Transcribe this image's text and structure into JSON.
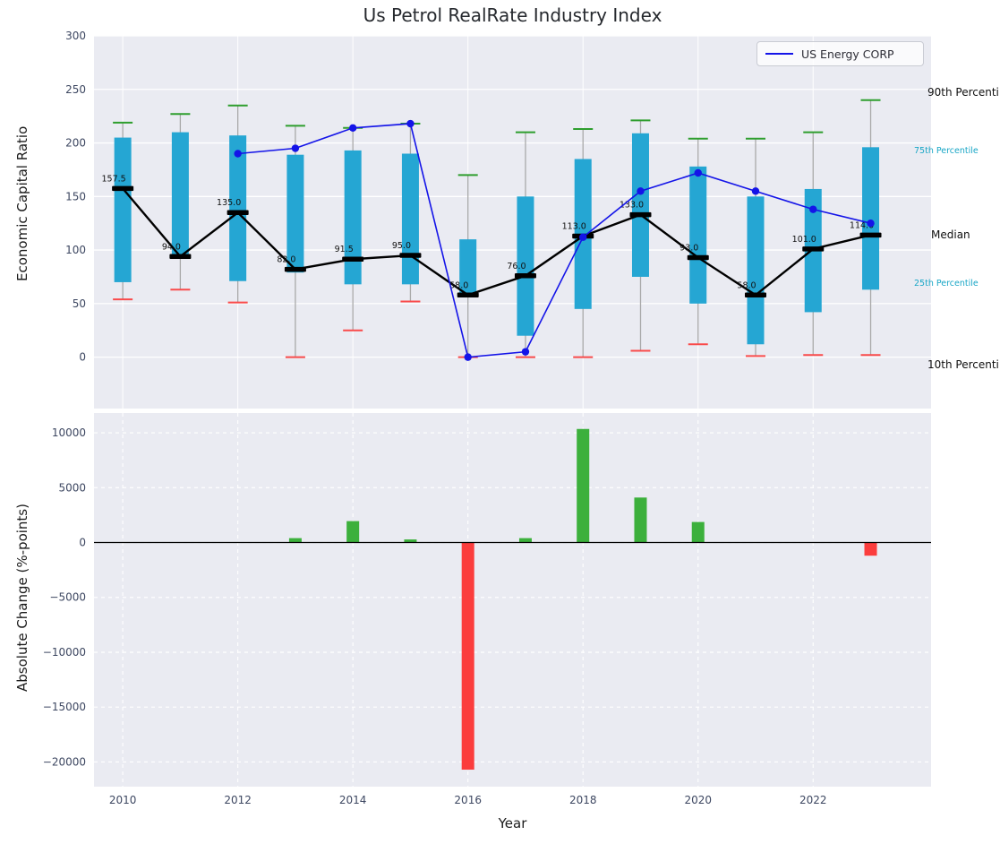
{
  "figure": {
    "title": "Us Petrol RealRate Industry Index"
  },
  "legend": {
    "label": "US Energy CORP"
  },
  "annotations": {
    "p90": "90th Percentile",
    "p75": "75th Percentile",
    "median": "Median",
    "p25": "25th Percentile",
    "p10": "10th Percentile"
  },
  "colors": {
    "panel_background": "#eaebf2",
    "grid": "#ffffff",
    "box": "#25a6d3",
    "whisker": "#a9a9a9",
    "p90_cap": "#2e9e2e",
    "p10_cap": "#f94b4b",
    "median_line": "#000000",
    "company_line": "#1414e8",
    "bar_positive": "#3cb03c",
    "bar_negative": "#fb3d3d",
    "annotation_cyan": "#18a6c6",
    "annotation_black": "#0f0f0f",
    "tick_label": "#3d4761"
  },
  "chart_data": [
    {
      "type": "boxplot+line",
      "title": "Us Petrol RealRate Industry Index",
      "ylabel": "Economic Capital Ratio",
      "ylim": [
        -48,
        300
      ],
      "yticks": [
        0,
        50,
        100,
        150,
        200,
        250,
        300
      ],
      "grid": "solid-horizontal-and-vertical",
      "legend_position": "upper right",
      "years": [
        2010,
        2011,
        2012,
        2013,
        2014,
        2015,
        2016,
        2017,
        2018,
        2019,
        2020,
        2021,
        2022,
        2023
      ],
      "percentile_90": [
        219,
        227,
        235,
        216,
        214,
        218,
        170,
        210,
        213,
        221,
        204,
        204,
        210,
        240
      ],
      "percentile_75": [
        205,
        210,
        207,
        189,
        193,
        190,
        110,
        150,
        185,
        209,
        178,
        150,
        157,
        196
      ],
      "median": [
        157.5,
        94,
        135,
        82,
        91.5,
        95,
        58,
        76,
        113,
        133,
        93,
        58,
        101,
        114
      ],
      "percentile_25": [
        70,
        93,
        71,
        79,
        68,
        68,
        57,
        20,
        45,
        75,
        50,
        12,
        42,
        63
      ],
      "percentile_10": [
        54,
        63,
        51,
        0,
        25,
        52,
        0,
        0,
        0,
        6,
        12,
        1,
        2,
        2
      ],
      "median_labels": [
        "157.5",
        "94.0",
        "135.0",
        "82.0",
        "91.5",
        "95.0",
        "58.0",
        "76.0",
        "113.0",
        "133.0",
        "93.0",
        "58.0",
        "101.0",
        "114.0"
      ],
      "series": [
        {
          "name": "US Energy CORP",
          "x": [
            2012,
            2013,
            2014,
            2015,
            2016,
            2017,
            2018,
            2019,
            2020,
            2021,
            2022,
            2023
          ],
          "y": [
            190,
            195,
            214,
            218,
            0,
            5,
            112,
            155,
            172,
            155,
            138,
            125
          ]
        }
      ],
      "right_annotations": [
        "90th Percentile",
        "75th Percentile",
        "Median",
        "25th Percentile",
        "10th Percentile"
      ]
    },
    {
      "type": "bar",
      "ylabel": "Absolute Change (%-points)",
      "xlabel": "Year",
      "ylim": [
        -22250,
        11800
      ],
      "yticks": [
        10000,
        5000,
        0,
        -5000,
        -10000,
        -15000,
        -20000
      ],
      "xticks": [
        2010,
        2012,
        2014,
        2016,
        2018,
        2020,
        2022
      ],
      "grid": "dashed",
      "years": [
        2010,
        2011,
        2012,
        2013,
        2014,
        2015,
        2016,
        2017,
        2018,
        2019,
        2020,
        2021,
        2022,
        2023
      ],
      "values": [
        0,
        0,
        0,
        400,
        1950,
        280,
        -20700,
        400,
        10350,
        4100,
        1870,
        0,
        0,
        -1200
      ]
    }
  ]
}
